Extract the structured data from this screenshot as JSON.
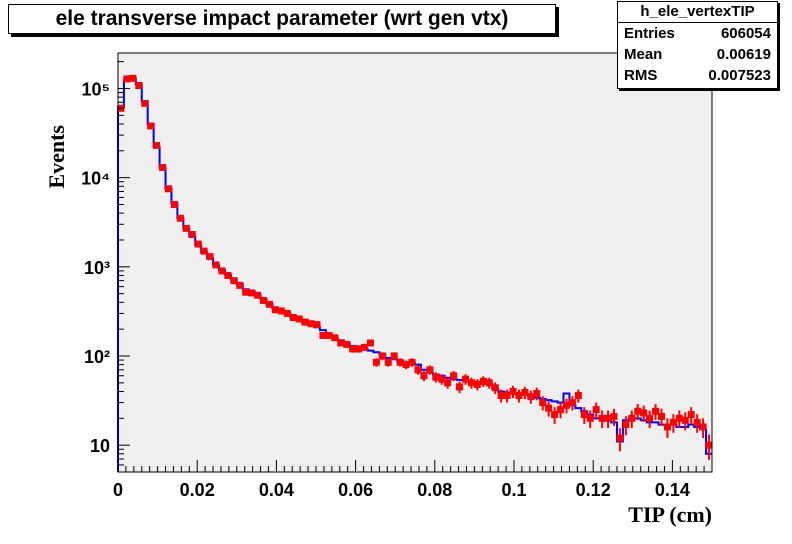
{
  "title": "ele transverse impact parameter (wrt gen vtx)",
  "stats": {
    "name": "h_ele_vertexTIP",
    "rows": [
      {
        "label": "Entries",
        "value": "606054"
      },
      {
        "label": "Mean",
        "value": "0.00619"
      },
      {
        "label": "RMS",
        "value": "0.007523"
      }
    ]
  },
  "colors": {
    "frame_fill": "#efefef",
    "line_series": "#0000ff",
    "marker_series": "#ff0000"
  },
  "chart_data": {
    "type": "line",
    "xlabel": "TIP (cm)",
    "ylabel": "Events",
    "xlim": [
      0,
      0.15
    ],
    "ylim": [
      5,
      250000
    ],
    "yscale": "log",
    "grid": false,
    "xticks": [
      0,
      0.02,
      0.04,
      0.06,
      0.08,
      0.1,
      0.12,
      0.14
    ],
    "xtick_labels": [
      "0",
      "0.02",
      "0.04",
      "0.06",
      "0.08",
      "0.1",
      "0.12",
      "0.14"
    ],
    "yticks": [
      10,
      100,
      1000,
      10000,
      100000
    ],
    "ytick_labels": [
      "10",
      "10²",
      "10³",
      "10⁴",
      "10⁵"
    ],
    "bin_width": 0.0015,
    "x": [
      0.00075,
      0.00225,
      0.00375,
      0.00525,
      0.00675,
      0.00825,
      0.00975,
      0.01125,
      0.01275,
      0.01425,
      0.01575,
      0.01725,
      0.01875,
      0.02025,
      0.02175,
      0.02325,
      0.02475,
      0.02625,
      0.02775,
      0.02925,
      0.03075,
      0.03225,
      0.03375,
      0.03525,
      0.03675,
      0.03825,
      0.03975,
      0.04125,
      0.04275,
      0.04425,
      0.04575,
      0.04725,
      0.04875,
      0.05025,
      0.05175,
      0.05325,
      0.05475,
      0.05625,
      0.05775,
      0.05925,
      0.06075,
      0.06225,
      0.06375,
      0.06525,
      0.06675,
      0.06825,
      0.06975,
      0.07125,
      0.07275,
      0.07425,
      0.07575,
      0.07725,
      0.07875,
      0.08025,
      0.08175,
      0.08325,
      0.08475,
      0.08625,
      0.08775,
      0.08925,
      0.09075,
      0.09225,
      0.09375,
      0.09525,
      0.09675,
      0.09825,
      0.09975,
      0.10125,
      0.10275,
      0.10425,
      0.10575,
      0.10725,
      0.10875,
      0.11025,
      0.11175,
      0.11325,
      0.11475,
      0.11625,
      0.11775,
      0.11925,
      0.12075,
      0.12225,
      0.12375,
      0.12525,
      0.12675,
      0.12825,
      0.12975,
      0.13125,
      0.13275,
      0.13425,
      0.13575,
      0.13725,
      0.13875,
      0.14025,
      0.14175,
      0.14325,
      0.14475,
      0.14625,
      0.14775,
      0.14925
    ],
    "series": [
      {
        "style": "line",
        "color": "#0000ff",
        "values": [
          62000,
          125000,
          130000,
          112000,
          72000,
          40000,
          22000,
          13000,
          7500,
          5200,
          3500,
          2700,
          2200,
          1750,
          1450,
          1250,
          1050,
          920,
          820,
          720,
          640,
          560,
          530,
          480,
          430,
          380,
          340,
          320,
          300,
          275,
          255,
          235,
          225,
          210,
          195,
          175,
          160,
          150,
          140,
          130,
          128,
          120,
          115,
          110,
          105,
          95,
          92,
          88,
          85,
          83,
          80,
          70,
          65,
          62,
          60,
          57,
          55,
          54,
          53,
          52,
          51,
          50,
          49,
          43,
          40,
          39,
          38,
          37,
          37,
          36,
          34,
          33,
          32,
          31,
          30,
          38,
          28,
          26,
          24,
          22,
          20,
          20,
          19,
          18,
          11,
          19,
          20,
          20,
          19,
          18,
          18,
          17,
          17,
          17,
          16,
          16,
          17,
          16,
          15,
          8
        ]
      },
      {
        "style": "markers",
        "color": "#ff0000",
        "values": [
          60000,
          128000,
          130000,
          108000,
          68000,
          38000,
          23000,
          13000,
          7500,
          5000,
          3500,
          2700,
          2300,
          1800,
          1500,
          1300,
          1050,
          900,
          800,
          700,
          620,
          520,
          510,
          480,
          420,
          380,
          330,
          320,
          300,
          270,
          260,
          240,
          230,
          225,
          170,
          170,
          160,
          140,
          135,
          120,
          120,
          125,
          140,
          85,
          100,
          85,
          100,
          85,
          80,
          85,
          70,
          60,
          70,
          58,
          55,
          50,
          60,
          45,
          55,
          50,
          48,
          52,
          50,
          44,
          36,
          36,
          40,
          36,
          39,
          35,
          38,
          30,
          26,
          22,
          25,
          28,
          30,
          36,
          22,
          20,
          25,
          20,
          20,
          21,
          12,
          17,
          20,
          24,
          23,
          20,
          24,
          21,
          16,
          18,
          20,
          19,
          22,
          18,
          16,
          10
        ]
      }
    ]
  }
}
